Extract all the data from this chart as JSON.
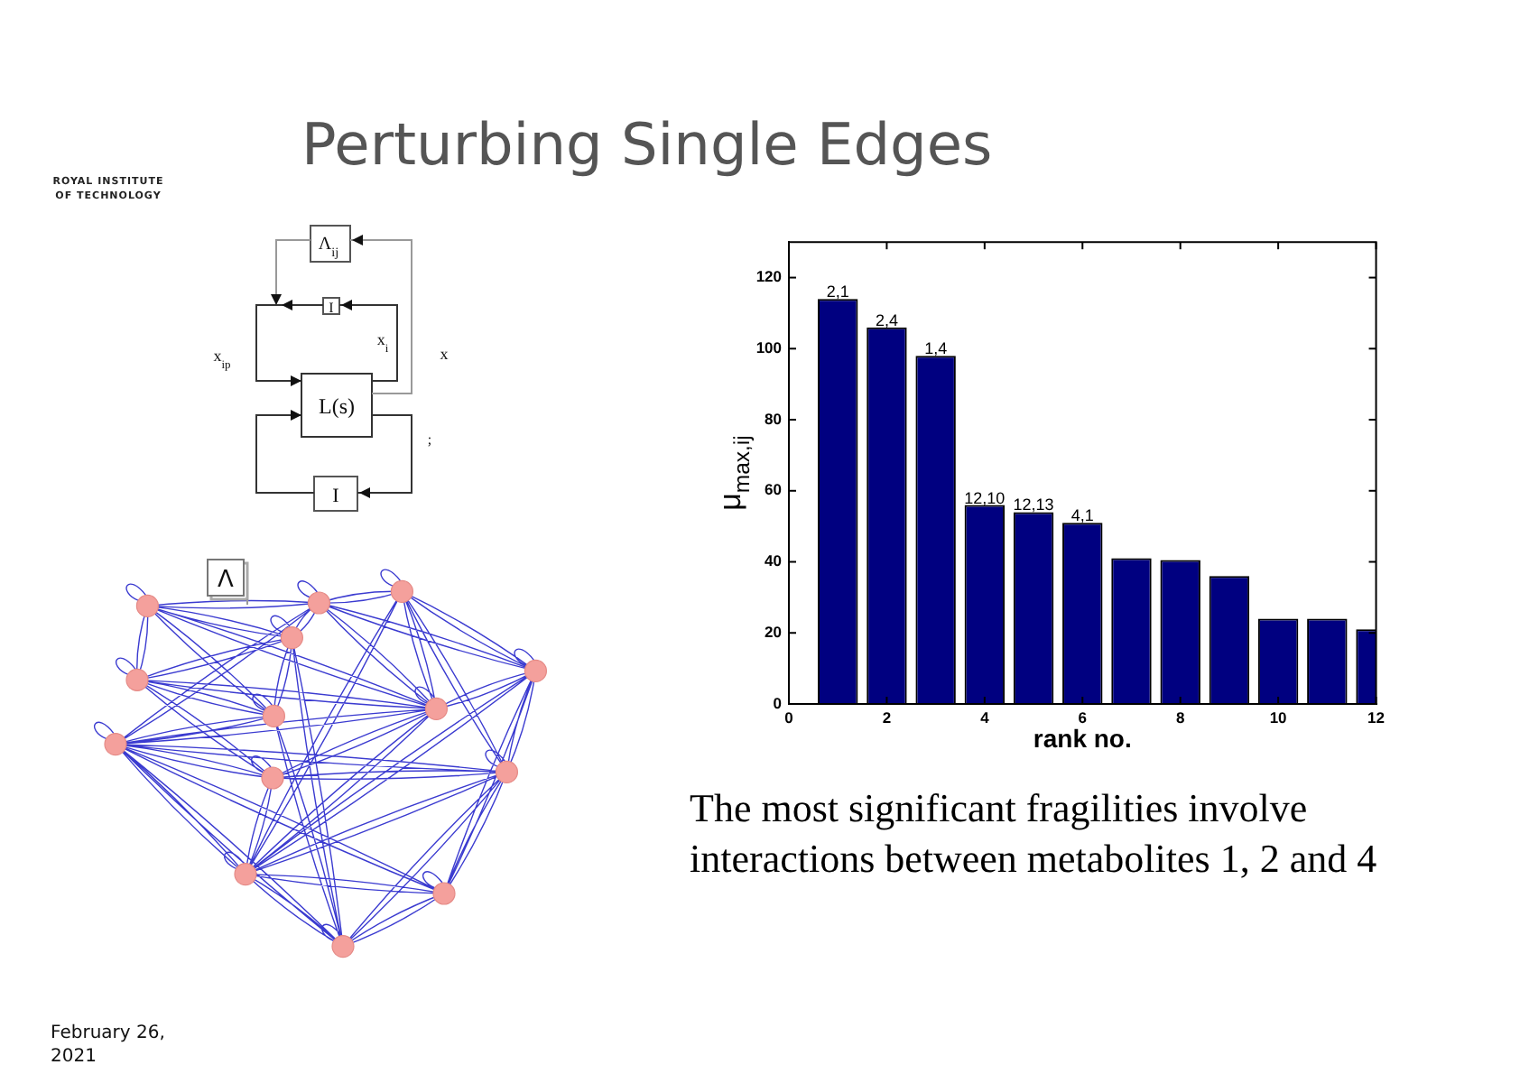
{
  "chart_data": {
    "type": "bar",
    "title": "Perturbing Single Edges",
    "xlabel": "rank no.",
    "ylabel": "μ$_{max,ij}$",
    "x": [
      1,
      2,
      3,
      4,
      5,
      6,
      7,
      8,
      9,
      10,
      11,
      12
    ],
    "values": [
      114,
      106,
      98,
      56,
      54,
      51,
      41,
      40.5,
      36,
      24,
      24,
      21
    ],
    "color": "#000080",
    "xlim": [
      0,
      12
    ],
    "xticks": [
      0,
      2,
      4,
      6,
      8,
      10,
      12
    ],
    "ylim": [
      0,
      130
    ],
    "yticks": [
      0,
      20,
      40,
      60,
      80,
      100,
      120
    ],
    "grid": false,
    "annotations": [
      "ROYAL INSTITUTE OF TECHNOLOGY",
      "The most significant fragilities involve interactions between metabolites 1, 2 and 4",
      "February 26, 2021",
      "Λ$_{ij}$",
      "I",
      "x$_{ip}$",
      "x$_{i}$",
      "x",
      "L(s)",
      "I",
      ";",
      "Λ",
      {
        "text": "2,1",
        "x": 1,
        "y": 114
      },
      {
        "text": "2,4",
        "x": 2,
        "y": 106
      },
      {
        "text": "1,4",
        "x": 3,
        "y": 98
      },
      {
        "text": "12,10",
        "x": 4,
        "y": 56
      },
      {
        "text": "12,13",
        "x": 5,
        "y": 54
      },
      {
        "text": "4,1",
        "x": 6,
        "y": 51
      }
    ]
  }
}
